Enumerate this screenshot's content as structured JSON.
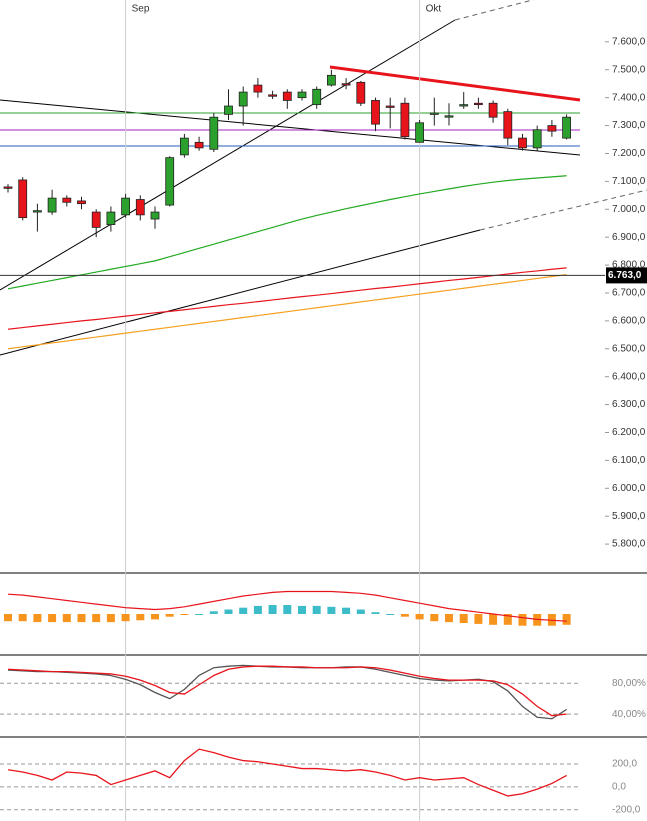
{
  "chart_data": [
    {
      "type": "candlestick",
      "categories": [
        null,
        null,
        null,
        null,
        null,
        null,
        null,
        null,
        "Sep",
        null,
        null,
        null,
        null,
        null,
        null,
        null,
        null,
        null,
        null,
        null,
        null,
        null,
        null,
        null,
        null,
        null,
        null,
        null,
        "Okt",
        null,
        null,
        null,
        null,
        null,
        null,
        null,
        null,
        null,
        null
      ],
      "open": [
        7080,
        7105,
        6990,
        6990,
        7040,
        7030,
        6990,
        6945,
        6980,
        7035,
        6965,
        7015,
        7195,
        7240,
        7215,
        7340,
        7370,
        7445,
        7410,
        7420,
        7400,
        7375,
        7445,
        7450,
        7455,
        7390,
        7370,
        7380,
        7240,
        7340,
        7330,
        7370,
        7380,
        7380,
        7350,
        7255,
        7220,
        7300,
        7255
      ],
      "high": [
        7090,
        7115,
        7020,
        7070,
        7050,
        7045,
        7000,
        7010,
        7055,
        7050,
        7010,
        7190,
        7270,
        7260,
        7345,
        7430,
        7440,
        7470,
        7425,
        7430,
        7430,
        7440,
        7500,
        7470,
        7460,
        7400,
        7400,
        7400,
        7320,
        7400,
        7380,
        7420,
        7400,
        7390,
        7360,
        7270,
        7300,
        7320,
        7340
      ],
      "low": [
        7060,
        6960,
        6920,
        6980,
        7010,
        7000,
        6900,
        6920,
        6970,
        6960,
        6930,
        7010,
        7185,
        7210,
        7205,
        7320,
        7300,
        7400,
        7395,
        7360,
        7390,
        7360,
        7440,
        7430,
        7370,
        7280,
        7290,
        7250,
        7240,
        7300,
        7300,
        7360,
        7360,
        7310,
        7230,
        7210,
        7210,
        7260,
        7250
      ],
      "close": [
        7075,
        6970,
        6995,
        7040,
        7025,
        7020,
        6935,
        6990,
        7040,
        6980,
        6990,
        7185,
        7255,
        7220,
        7330,
        7370,
        7420,
        7420,
        7405,
        7390,
        7420,
        7430,
        7480,
        7445,
        7380,
        7305,
        7365,
        7260,
        7310,
        7345,
        7335,
        7375,
        7375,
        7330,
        7255,
        7220,
        7285,
        7280,
        7330
      ],
      "up_color": "#2ca02c",
      "down_color": "#e8141c",
      "series": [
        {
          "color": "#22aa22",
          "values": [
            6715,
            6725,
            6735,
            6745,
            6755,
            6765,
            6775,
            6785,
            6795,
            6805,
            6815,
            6830,
            6845,
            6860,
            6875,
            6890,
            6905,
            6920,
            6935,
            6950,
            6965,
            6978,
            6990,
            7002,
            7013,
            7024,
            7035,
            7045,
            7055,
            7064,
            7073,
            7082,
            7090,
            7097,
            7103,
            7108,
            7112,
            7116,
            7120
          ]
        },
        {
          "color": "#e8141c",
          "values": [
            6570,
            6576,
            6582,
            6588,
            6594,
            6600,
            6605,
            6611,
            6617,
            6623,
            6629,
            6634,
            6640,
            6646,
            6652,
            6658,
            6663,
            6669,
            6675,
            6681,
            6687,
            6692,
            6698,
            6704,
            6710,
            6716,
            6721,
            6727,
            6733,
            6739,
            6745,
            6750,
            6756,
            6762,
            6768,
            6774,
            6779,
            6785,
            6790
          ]
        },
        {
          "color": "#f5a020",
          "values": [
            6500,
            6507,
            6514,
            6521,
            6528,
            6535,
            6542,
            6549,
            6556,
            6563,
            6570,
            6577,
            6584,
            6591,
            6598,
            6605,
            6612,
            6619,
            6626,
            6633,
            6640,
            6647,
            6654,
            6661,
            6668,
            6675,
            6682,
            6689,
            6696,
            6703,
            6710,
            6717,
            6724,
            6731,
            6738,
            6745,
            6752,
            6759,
            6766
          ]
        }
      ],
      "last_price": {
        "value": 6763,
        "label": "6.763,0"
      },
      "ylim": [
        5700,
        7750
      ],
      "yticks": [
        {
          "value": 7600,
          "label": "7.600,0"
        },
        {
          "value": 7500,
          "label": "7.500,0"
        },
        {
          "value": 7400,
          "label": "7.400,0"
        },
        {
          "value": 7300,
          "label": "7.300,0"
        },
        {
          "value": 7200,
          "label": "7.200,0"
        },
        {
          "value": 7100,
          "label": "7.100,0"
        },
        {
          "value": 7000,
          "label": "7.000,0"
        },
        {
          "value": 6900,
          "label": "6.900,0"
        },
        {
          "value": 6800,
          "label": "6.800,0"
        },
        {
          "value": 6700,
          "label": "6.700,0"
        },
        {
          "value": 6600,
          "label": "6.600,0"
        },
        {
          "value": 6500,
          "label": "6.500,0"
        },
        {
          "value": 6400,
          "label": "6.400,0"
        },
        {
          "value": 6300,
          "label": "6.300,0"
        },
        {
          "value": 6200,
          "label": "6.200,0"
        },
        {
          "value": 6100,
          "label": "6.100,0"
        },
        {
          "value": 6000,
          "label": "6.000,0"
        },
        {
          "value": 5900,
          "label": "5.900,0"
        },
        {
          "value": 5800,
          "label": "5.800,0"
        }
      ],
      "grid": false
    },
    {
      "type": "bar",
      "values": [
        -8,
        -8,
        -9,
        -9,
        -9,
        -9,
        -9,
        -9,
        -8,
        -7,
        -6,
        -3,
        -1,
        0,
        3,
        5,
        7,
        9,
        10,
        10,
        9,
        9,
        8,
        7,
        5,
        2,
        0,
        -3,
        -6,
        -8,
        -9,
        -10,
        -11,
        -12,
        -12,
        -13,
        -13,
        -13,
        -12
      ],
      "positive_color": "#3cbcc8",
      "negative_color": "#f7941d",
      "series": [
        {
          "color": "#e8141c",
          "values": [
            22,
            21,
            19,
            17,
            15,
            13,
            11,
            9,
            7,
            6,
            5,
            6,
            8,
            11,
            14,
            17,
            20,
            22,
            24,
            25,
            25,
            25,
            25,
            24,
            23,
            21,
            18,
            15,
            12,
            9,
            6,
            4,
            2,
            0,
            -2,
            -4,
            -6,
            -7,
            -8
          ]
        }
      ],
      "ylim": [
        -40,
        40
      ],
      "grid": false
    },
    {
      "type": "line",
      "series": [
        {
          "color": "#555555",
          "values": [
            97,
            96,
            95,
            95,
            94,
            93,
            92,
            90,
            85,
            78,
            68,
            60,
            72,
            90,
            100,
            102,
            103,
            102,
            101,
            101,
            100,
            100,
            100,
            101,
            101,
            98,
            94,
            90,
            86,
            84,
            83,
            84,
            85,
            82,
            70,
            50,
            36,
            34,
            46
          ]
        },
        {
          "color": "#e8141c",
          "values": [
            98,
            97,
            96,
            95,
            95,
            94,
            93,
            92,
            89,
            84,
            77,
            68,
            66,
            78,
            90,
            98,
            101,
            102,
            102,
            101,
            101,
            100,
            100,
            100,
            101,
            100,
            97,
            93,
            89,
            86,
            84,
            84,
            84,
            83,
            78,
            66,
            50,
            38,
            40
          ]
        }
      ],
      "ylim": [
        13,
        110
      ],
      "yticks": [
        {
          "value": 80,
          "label": "80,00%"
        },
        {
          "value": 40,
          "label": "40,00%"
        }
      ],
      "grid": true
    },
    {
      "type": "line",
      "series": [
        {
          "color": "#e8141c",
          "values": [
            150,
            130,
            100,
            60,
            130,
            120,
            100,
            20,
            60,
            100,
            140,
            80,
            230,
            330,
            300,
            260,
            230,
            220,
            200,
            180,
            160,
            160,
            150,
            140,
            150,
            130,
            100,
            60,
            80,
            60,
            70,
            80,
            20,
            -30,
            -80,
            -60,
            -20,
            30,
            100
          ]
        }
      ],
      "ylim": [
        -290,
        410
      ],
      "yticks": [
        {
          "value": 200,
          "label": "200,0"
        },
        {
          "value": 0,
          "label": "0,0"
        },
        {
          "value": -200,
          "label": "-200,0"
        }
      ],
      "grid": true
    }
  ]
}
